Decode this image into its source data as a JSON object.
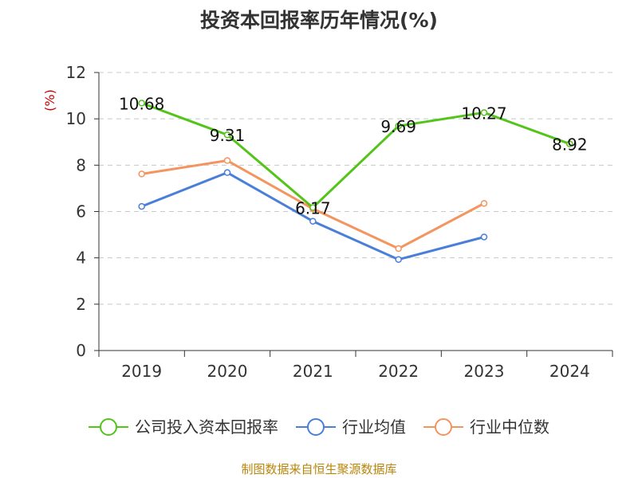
{
  "chart_data": {
    "type": "line",
    "title": "投资本回报率历年情况(%)",
    "ylabel": "(%)",
    "xlabel": "",
    "categories": [
      "2019",
      "2020",
      "2021",
      "2022",
      "2023",
      "2024"
    ],
    "ylim": [
      0,
      12
    ],
    "yticks": [
      "0",
      "2",
      "4",
      "6",
      "8",
      "10",
      "12"
    ],
    "grid": true,
    "legend_position": "bottom",
    "series": [
      {
        "name": "公司投入资本回报率",
        "color": "#52c41a",
        "values": [
          10.68,
          9.31,
          6.17,
          9.69,
          10.27,
          8.92
        ],
        "labels": [
          "10.68",
          "9.31",
          "6.17",
          "9.69",
          "10.27",
          "8.92"
        ]
      },
      {
        "name": "行业均值",
        "color": "#4a7fd9",
        "values": [
          6.22,
          7.68,
          5.58,
          3.93,
          4.9,
          null
        ]
      },
      {
        "name": "行业中位数",
        "color": "#f4945e",
        "values": [
          7.62,
          8.2,
          6.12,
          4.4,
          6.35,
          null
        ]
      }
    ],
    "source": "制图数据来自恒生聚源数据库"
  }
}
